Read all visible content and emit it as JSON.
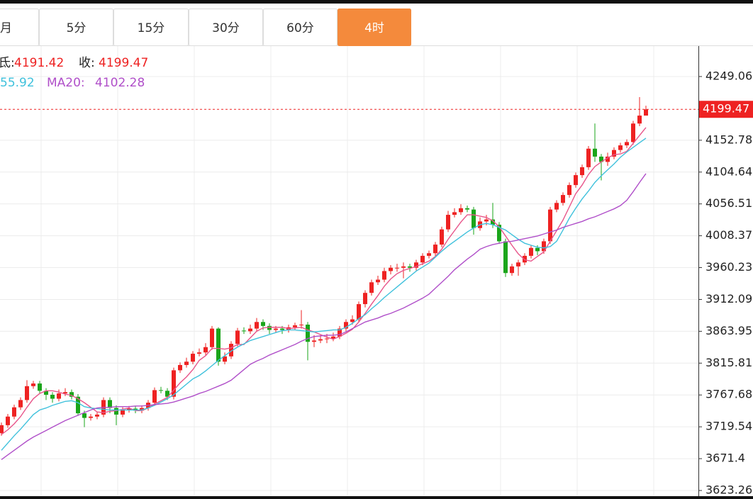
{
  "tabs": {
    "items": [
      "月",
      "5分",
      "15分",
      "30分",
      "60分",
      "4时"
    ],
    "active": 5
  },
  "chart_data": {
    "type": "candlestick",
    "categories": [
      null,
      null,
      null,
      null,
      null,
      null,
      null,
      null,
      null,
      null,
      null,
      null,
      null,
      null,
      null,
      null,
      null,
      null,
      null,
      null,
      null,
      null,
      null,
      null,
      null,
      null,
      null,
      null,
      null,
      null,
      null,
      null,
      null,
      null,
      null,
      null,
      null,
      null,
      null,
      null,
      null,
      null,
      null,
      null,
      null,
      null,
      null,
      null,
      null,
      null,
      null,
      null,
      null,
      null,
      null,
      null,
      null,
      null,
      null,
      null,
      null,
      null,
      null,
      null,
      null,
      null,
      null,
      null,
      null,
      null,
      null,
      null,
      null,
      null,
      null,
      null,
      null,
      null,
      null,
      null,
      null,
      null,
      null,
      null,
      null,
      null,
      null,
      null,
      null,
      null,
      null,
      null,
      null,
      null,
      null,
      null,
      null,
      null,
      null,
      null,
      null,
      null
    ],
    "open": [
      3710,
      3722,
      3735,
      3749,
      3760,
      3781,
      3785,
      3774,
      3768,
      3762,
      3770,
      3772,
      3765,
      3740,
      3733,
      3735,
      3738,
      3760,
      3748,
      3738,
      3745,
      3747,
      3744,
      3748,
      3756,
      3775,
      3774,
      3765,
      3805,
      3813,
      3818,
      3830,
      3832,
      3840,
      3868,
      3818,
      3826,
      3845,
      3865,
      3864,
      3868,
      3878,
      3872,
      3866,
      3868,
      3866,
      3870,
      3873,
      3874,
      3848,
      3850,
      3852,
      3853,
      3856,
      3868,
      3878,
      3882,
      3905,
      3922,
      3938,
      3942,
      3955,
      3960,
      3960,
      3962,
      3960,
      3968,
      3978,
      3982,
      3995,
      4018,
      4040,
      4044,
      4050,
      4048,
      4020,
      4030,
      4033,
      4025,
      4000,
      3952,
      3962,
      3968,
      3978,
      3990,
      3985,
      4000,
      4048,
      4058,
      4070,
      4085,
      4100,
      4112,
      4140,
      4128,
      4120,
      4128,
      4138,
      4145,
      4150,
      4178,
      4190
    ],
    "high": [
      3726,
      3739,
      3753,
      3764,
      3790,
      3789,
      3789,
      3778,
      3772,
      3776,
      3778,
      3776,
      3769,
      3744,
      3739,
      3742,
      3764,
      3764,
      3752,
      3749,
      3751,
      3751,
      3752,
      3760,
      3779,
      3780,
      3778,
      3809,
      3817,
      3824,
      3834,
      3838,
      3846,
      3872,
      3870,
      3832,
      3849,
      3869,
      3870,
      3874,
      3884,
      3882,
      3876,
      3872,
      3872,
      3874,
      3877,
      3896,
      3878,
      3858,
      3858,
      3860,
      3862,
      3872,
      3882,
      3888,
      3909,
      3926,
      3942,
      3948,
      3960,
      3964,
      3966,
      3968,
      3966,
      3972,
      3982,
      3986,
      3999,
      4022,
      4046,
      4050,
      4056,
      4054,
      4052,
      4036,
      4040,
      4058,
      4029,
      4004,
      3966,
      3972,
      3982,
      3994,
      3994,
      4004,
      4052,
      4062,
      4074,
      4089,
      4104,
      4116,
      4144,
      4178,
      4132,
      4134,
      4142,
      4149,
      4154,
      4182,
      4218,
      4205
    ],
    "low": [
      3706,
      3718,
      3731,
      3745,
      3756,
      3777,
      3770,
      3760,
      3756,
      3758,
      3766,
      3761,
      3736,
      3719,
      3729,
      3731,
      3734,
      3740,
      3722,
      3734,
      3741,
      3740,
      3740,
      3744,
      3752,
      3770,
      3760,
      3761,
      3801,
      3809,
      3814,
      3826,
      3828,
      3836,
      3812,
      3814,
      3822,
      3841,
      3860,
      3860,
      3864,
      3866,
      3860,
      3862,
      3860,
      3862,
      3866,
      3868,
      3820,
      3840,
      3846,
      3846,
      3849,
      3852,
      3864,
      3874,
      3878,
      3900,
      3918,
      3934,
      3938,
      3950,
      3954,
      3944,
      3954,
      3956,
      3964,
      3974,
      3978,
      3991,
      4014,
      4036,
      4040,
      4044,
      4010,
      4016,
      4024,
      4020,
      3996,
      3946,
      3948,
      3948,
      3964,
      3974,
      3979,
      3981,
      3996,
      4044,
      4054,
      4066,
      4081,
      4096,
      4108,
      4120,
      4092,
      4114,
      4124,
      4134,
      4141,
      4146,
      4174,
      4191.42
    ],
    "close": [
      3722,
      3735,
      3749,
      3760,
      3781,
      3785,
      3774,
      3768,
      3762,
      3770,
      3772,
      3765,
      3740,
      3733,
      3735,
      3738,
      3760,
      3748,
      3738,
      3745,
      3747,
      3744,
      3748,
      3756,
      3775,
      3774,
      3765,
      3805,
      3813,
      3818,
      3830,
      3832,
      3840,
      3868,
      3818,
      3826,
      3845,
      3865,
      3864,
      3868,
      3878,
      3872,
      3866,
      3868,
      3866,
      3870,
      3873,
      3874,
      3848,
      3850,
      3852,
      3853,
      3856,
      3868,
      3878,
      3882,
      3905,
      3922,
      3938,
      3942,
      3955,
      3960,
      3960,
      3962,
      3960,
      3968,
      3978,
      3982,
      3995,
      4018,
      4040,
      4044,
      4050,
      4048,
      4020,
      4030,
      4033,
      4025,
      4000,
      3952,
      3962,
      3968,
      3978,
      3990,
      3985,
      4000,
      4048,
      4058,
      4070,
      4085,
      4100,
      4112,
      4140,
      4128,
      4120,
      4128,
      4138,
      4145,
      4150,
      4178,
      4190,
      4199.47
    ],
    "up_color": "#ee2222",
    "down_color": "#1aa51a",
    "series": [
      {
        "color": "#e8558a",
        "values": [
          3708,
          3715,
          3724,
          3735,
          3749,
          3762,
          3770,
          3774,
          3774,
          3772,
          3769,
          3767,
          3762,
          3756,
          3749,
          3742,
          3741,
          3743,
          3744,
          3746,
          3748,
          3744,
          3744,
          3748,
          3754,
          3759,
          3764,
          3775,
          3786,
          3795,
          3806,
          3820,
          3827,
          3838,
          3838,
          3837,
          3839,
          3844,
          3844,
          3854,
          3864,
          3869,
          3870,
          3870,
          3870,
          3868,
          3869,
          3870,
          3866,
          3863,
          3859,
          3855,
          3852,
          3856,
          3861,
          3867,
          3878,
          3891,
          3905,
          3918,
          3932,
          3943,
          3951,
          3956,
          3959,
          3962,
          3966,
          3970,
          3977,
          3988,
          4003,
          4016,
          4029,
          4040,
          4040,
          4038,
          4036,
          4031,
          4022,
          4008,
          3994,
          3981,
          3972,
          3970,
          3977,
          3984,
          4000,
          4016,
          4032,
          4052,
          4072,
          4085,
          4101,
          4113,
          4120,
          4126,
          4131,
          4132,
          4136,
          4148,
          4160,
          4172
        ]
      },
      {
        "color": "#3fc1dc",
        "values": [
          3684,
          3695,
          3706,
          3716,
          3727,
          3738,
          3745,
          3748,
          3752,
          3755,
          3758,
          3759,
          3756,
          3750,
          3748,
          3747,
          3746,
          3745,
          3745,
          3745,
          3745,
          3745,
          3745,
          3748,
          3752,
          3757,
          3762,
          3768,
          3776,
          3784,
          3792,
          3797,
          3804,
          3812,
          3820,
          3827,
          3834,
          3840,
          3845,
          3850,
          3853,
          3856,
          3859,
          3862,
          3865,
          3866,
          3866,
          3865,
          3864,
          3863,
          3864,
          3865,
          3866,
          3866,
          3870,
          3876,
          3883,
          3889,
          3898,
          3906,
          3915,
          3923,
          3931,
          3939,
          3947,
          3955,
          3961,
          3967,
          3976,
          3985,
          3993,
          4000,
          4007,
          4014,
          4020,
          4025,
          4027,
          4025,
          4021,
          4017,
          4010,
          4003,
          3997,
          3994,
          3991,
          3990,
          3992,
          4000,
          4017,
          4035,
          4050,
          4064,
          4076,
          4089,
          4099,
          4108,
          4117,
          4127,
          4135,
          4142,
          4149,
          4155.92
        ]
      },
      {
        "name": "MA20:",
        "color": "#b04fc9",
        "values": [
          3670,
          3677,
          3684,
          3691,
          3698,
          3704,
          3709,
          3714,
          3719,
          3724,
          3729,
          3733,
          3737,
          3741,
          3745,
          3748,
          3749,
          3749,
          3750,
          3750,
          3750,
          3751,
          3751,
          3752,
          3753,
          3754,
          3755,
          3757,
          3760,
          3763,
          3766,
          3770,
          3773,
          3777,
          3781,
          3785,
          3790,
          3798,
          3806,
          3814,
          3819,
          3823,
          3828,
          3832,
          3836,
          3840,
          3844,
          3849,
          3853,
          3856,
          3857,
          3858,
          3858,
          3859,
          3863,
          3868,
          3873,
          3878,
          3881,
          3884,
          3888,
          3891,
          3895,
          3899,
          3904,
          3909,
          3914,
          3920,
          3929,
          3938,
          3947,
          3957,
          3965,
          3973,
          3980,
          3988,
          3992,
          3995,
          3997,
          3999,
          4000,
          4002,
          4004,
          4006,
          4008,
          4011,
          4014,
          4017,
          4021,
          4024,
          4027,
          4030,
          4034,
          4037,
          4041,
          4045,
          4049,
          4054,
          4062,
          4075,
          4089,
          4102.28
        ]
      }
    ],
    "legend": {
      "low_label": "氐:",
      "close_label": "收:",
      "ma10_text": "55.92"
    },
    "last_price_color": "#ee2222",
    "ylim": [
      3614.7,
      4295.1
    ],
    "yticks": [
      4249.06,
      4152.78,
      4104.64,
      4056.51,
      4008.37,
      3960.23,
      3912.09,
      3863.95,
      3815.81,
      3767.68,
      3719.54,
      3671.4,
      3623.26
    ],
    "grid": true
  }
}
